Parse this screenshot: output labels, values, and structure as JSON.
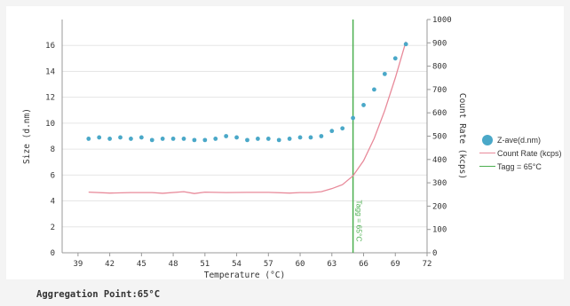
{
  "chart_data": {
    "type": "scatter+line",
    "title": "",
    "xlabel": "Temperature (°C)",
    "ylabel_left": "Size (d.nm)",
    "ylabel_right": "Count Rate (kcps)",
    "xlim": [
      37.5,
      72
    ],
    "ylim_left": [
      0,
      18
    ],
    "ylim_right": [
      0,
      1000
    ],
    "x_ticks": [
      39,
      42,
      45,
      48,
      51,
      54,
      57,
      60,
      63,
      66,
      69,
      72
    ],
    "y_left_ticks": [
      0,
      2,
      4,
      6,
      8,
      10,
      12,
      14,
      16
    ],
    "y_right_ticks": [
      0,
      100,
      200,
      300,
      400,
      500,
      600,
      700,
      800,
      900,
      1000
    ],
    "grid": "horizontal",
    "legend_position": "right",
    "series": [
      {
        "name": "Z-ave(d.nm)",
        "kind": "scatter",
        "axis": "left",
        "color": "#4aa8c8",
        "x": [
          40,
          41,
          42,
          43,
          44,
          45,
          46,
          47,
          48,
          49,
          50,
          51,
          52,
          53,
          54,
          55,
          56,
          57,
          58,
          59,
          60,
          61,
          62,
          63,
          64,
          65,
          66,
          67,
          68,
          69,
          70
        ],
        "y": [
          8.8,
          8.9,
          8.8,
          8.9,
          8.8,
          8.9,
          8.7,
          8.8,
          8.8,
          8.8,
          8.7,
          8.7,
          8.8,
          9.0,
          8.9,
          8.7,
          8.8,
          8.8,
          8.7,
          8.8,
          8.9,
          8.9,
          9.0,
          9.4,
          9.6,
          10.4,
          11.4,
          12.6,
          13.8,
          15.0,
          16.1
        ]
      },
      {
        "name": "Count Rate (kcps)",
        "kind": "line",
        "axis": "right",
        "color": "#e88a9a",
        "x": [
          40,
          42,
          44,
          46,
          47,
          49,
          50,
          51,
          53,
          55,
          57,
          59,
          60,
          61,
          62,
          63,
          64,
          65,
          66,
          67,
          68,
          69,
          70
        ],
        "y": [
          260,
          256,
          258,
          258,
          255,
          262,
          254,
          260,
          258,
          259,
          259,
          256,
          258,
          258,
          262,
          275,
          292,
          330,
          395,
          490,
          610,
          750,
          905
        ]
      },
      {
        "name": "Tagg = 65°C",
        "kind": "vline",
        "axis": "x",
        "color": "#4caf50",
        "x": 65
      }
    ],
    "annotations": [
      {
        "text": "Tagg = 65°C",
        "x": 65,
        "orientation": "vertical"
      }
    ]
  },
  "footer": {
    "text": "Aggregation Point:65°C"
  }
}
